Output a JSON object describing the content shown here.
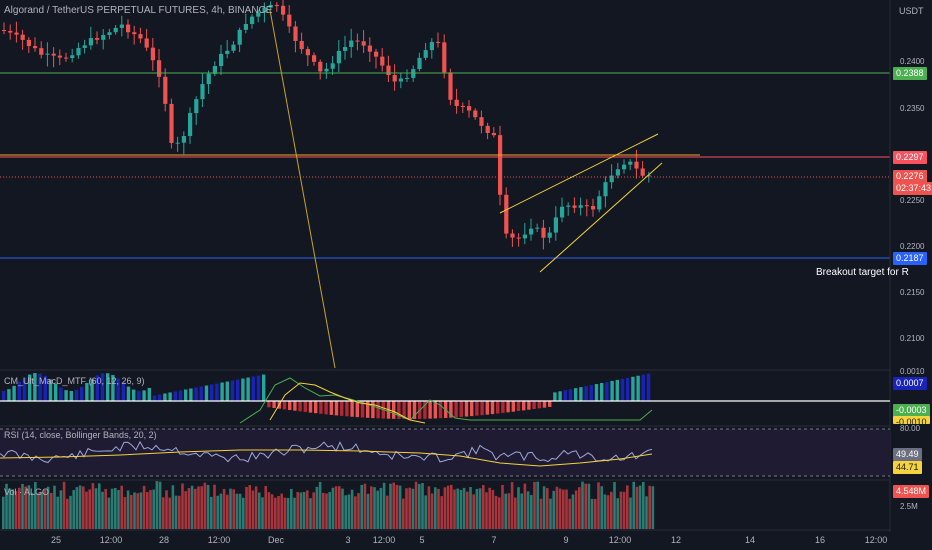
{
  "header": {
    "title": "Algorand / TetherUS PERPETUAL FUTURES, 4h, BINANCE"
  },
  "currency": "USDT",
  "annotation": "Breakout target for R",
  "price_labels": [
    "0.2400",
    "0.2350",
    "0.2250",
    "0.2200",
    "0.2150",
    "0.2100"
  ],
  "badges": {
    "green_level": "0.2388",
    "red_level": "0.2297",
    "last_price": "0.2276",
    "countdown": "02:37:43",
    "blue_level": "0.2187"
  },
  "macd": {
    "title": "CM_Ult_MacD_MTF (60, 12, 26, 9)",
    "scale_top": "0.0010",
    "badge_hist": "0.0007",
    "badge_macd": "-0.0003",
    "badge_signal": "-0.0010"
  },
  "rsi": {
    "title": "RSI (14, close, Bollinger Bands, 20, 2)",
    "scale_top": "80.00",
    "value": "49.49",
    "ma": "44.71"
  },
  "volume": {
    "title": "Vol · ALGO",
    "value": "4.548M",
    "scale_mid": "2.5M"
  },
  "time_axis": [
    "25",
    "12:00",
    "28",
    "12:00",
    "Dec",
    "3",
    "12:00",
    "5",
    "7",
    "9",
    "12:00",
    "12",
    "14",
    "16",
    "12:00"
  ],
  "colors": {
    "up": "#26a69a",
    "down": "#ef5350",
    "green_line": "#4caf50",
    "red_line": "#f7525f",
    "blue_line": "#2962ff",
    "wedge": "#f5d33d"
  }
}
